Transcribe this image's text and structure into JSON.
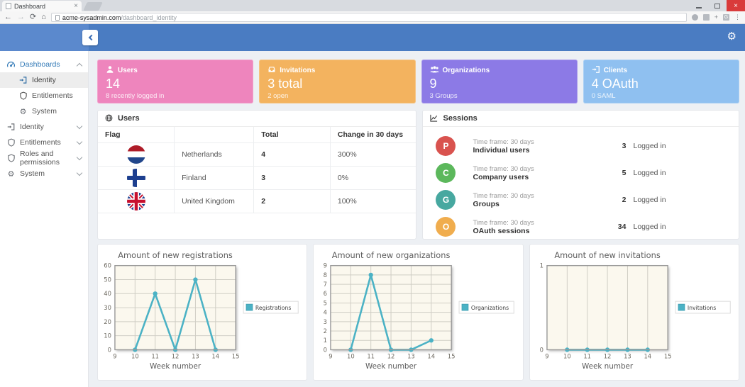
{
  "browser": {
    "tab_title": "Dashboard",
    "url_host": "acme-sysadmin.com",
    "url_path": "/dashboard_identity"
  },
  "icons": {
    "back_arrow": "←",
    "forward_arrow": "→",
    "refresh": "⟳",
    "home": "⌂",
    "menu_dots": "⋮",
    "gear": "⚙",
    "tab_close": "×",
    "window_close": "×",
    "move_ext": "+",
    "g_badge": "G",
    "cogs": "⚙",
    "cog_small": "⚙"
  },
  "sidebar": {
    "items": [
      {
        "label": "Dashboards",
        "icon": "tachometer-icon",
        "expanded": true,
        "children": [
          {
            "label": "Identity",
            "icon": "sign-in-icon",
            "active": true
          },
          {
            "label": "Entitlements",
            "icon": "shield-icon",
            "active": false
          },
          {
            "label": "System",
            "icon": "cogs-icon",
            "active": false
          }
        ]
      },
      {
        "label": "Identity",
        "icon": "sign-in-icon"
      },
      {
        "label": "Entitlements",
        "icon": "shield-icon"
      },
      {
        "label": "Roles and permissions",
        "icon": "shield-icon"
      },
      {
        "label": "System",
        "icon": "cogs-icon"
      }
    ]
  },
  "cards": [
    {
      "title": "Users",
      "value": "14",
      "subtitle": "8 recently logged in",
      "color": "#ee85bd",
      "icon": "user-icon"
    },
    {
      "title": "Invitations",
      "value": "3 total",
      "subtitle": "2 open",
      "color": "#f3b35f",
      "icon": "inbox-icon"
    },
    {
      "title": "Organizations",
      "value": "9",
      "subtitle": "3 Groups",
      "color": "#8c7ae6",
      "icon": "group-icon"
    },
    {
      "title": "Clients",
      "value": "4 OAuth",
      "subtitle": "0 SAML",
      "color": "#8fc0f0",
      "icon": "sign-in-icon"
    }
  ],
  "users_panel": {
    "title": "Users",
    "icon": "globe-icon",
    "columns": [
      "Flag",
      "",
      "Total",
      "Change in 30 days"
    ],
    "rows": [
      {
        "flag": "netherlands",
        "country": "Netherlands",
        "total": "4",
        "change": "300%"
      },
      {
        "flag": "finland",
        "country": "Finland",
        "total": "3",
        "change": "0%"
      },
      {
        "flag": "united-kingdom",
        "country": "United Kingdom",
        "total": "2",
        "change": "100%"
      }
    ]
  },
  "sessions_panel": {
    "title": "Sessions",
    "icon": "line-chart-icon",
    "rows": [
      {
        "initial": "P",
        "color": "#d9534f",
        "timeframe": "Time frame: 30 days",
        "name": "Individual users",
        "count": "3",
        "status": "Logged in"
      },
      {
        "initial": "C",
        "color": "#5cb85c",
        "timeframe": "Time frame: 30 days",
        "name": "Company users",
        "count": "5",
        "status": "Logged in"
      },
      {
        "initial": "G",
        "color": "#47a8a0",
        "timeframe": "Time frame: 30 days",
        "name": "Groups",
        "count": "2",
        "status": "Logged in"
      },
      {
        "initial": "O",
        "color": "#f0ad4e",
        "timeframe": "Time frame: 30 days",
        "name": "OAuth sessions",
        "count": "34",
        "status": "Logged in"
      }
    ]
  },
  "chart_data": [
    {
      "type": "line",
      "title": "Amount of new registrations",
      "xlabel": "Week number",
      "legend": "Registrations",
      "x": [
        10,
        11,
        12,
        13,
        14
      ],
      "values": [
        0,
        40,
        0,
        50,
        0
      ],
      "xticks": [
        9,
        10,
        11,
        12,
        13,
        14,
        15
      ],
      "yticks": [
        0,
        10,
        20,
        30,
        40,
        50,
        60
      ],
      "xlim": [
        9,
        15
      ],
      "ylim": [
        0,
        60
      ],
      "color": "#4bb2c5",
      "plot_bg": "#fbf8ee",
      "grid": true,
      "legend_position": "right"
    },
    {
      "type": "line",
      "title": "Amount of new organizations",
      "xlabel": "Week number",
      "legend": "Organizations",
      "x": [
        10,
        11,
        12,
        13,
        14
      ],
      "values": [
        0,
        8,
        0,
        0,
        1
      ],
      "xticks": [
        9,
        10,
        11,
        12,
        13,
        14,
        15
      ],
      "yticks": [
        0,
        1,
        2,
        3,
        4,
        5,
        6,
        7,
        8,
        9
      ],
      "xlim": [
        9,
        15
      ],
      "ylim": [
        0,
        9
      ],
      "color": "#4bb2c5",
      "plot_bg": "#fbf8ee",
      "grid": true,
      "legend_position": "right"
    },
    {
      "type": "line",
      "title": "Amount of new invitations",
      "xlabel": "Week number",
      "legend": "Invitations",
      "x": [
        10,
        11,
        12,
        13,
        14
      ],
      "values": [
        0,
        0,
        0,
        0,
        0
      ],
      "xticks": [
        9,
        10,
        11,
        12,
        13,
        14,
        15
      ],
      "yticks": [
        0,
        1
      ],
      "xlim": [
        9,
        15
      ],
      "ylim": [
        0,
        1
      ],
      "color": "#4bb2c5",
      "plot_bg": "#fbf8ee",
      "grid": true,
      "legend_position": "right"
    }
  ]
}
